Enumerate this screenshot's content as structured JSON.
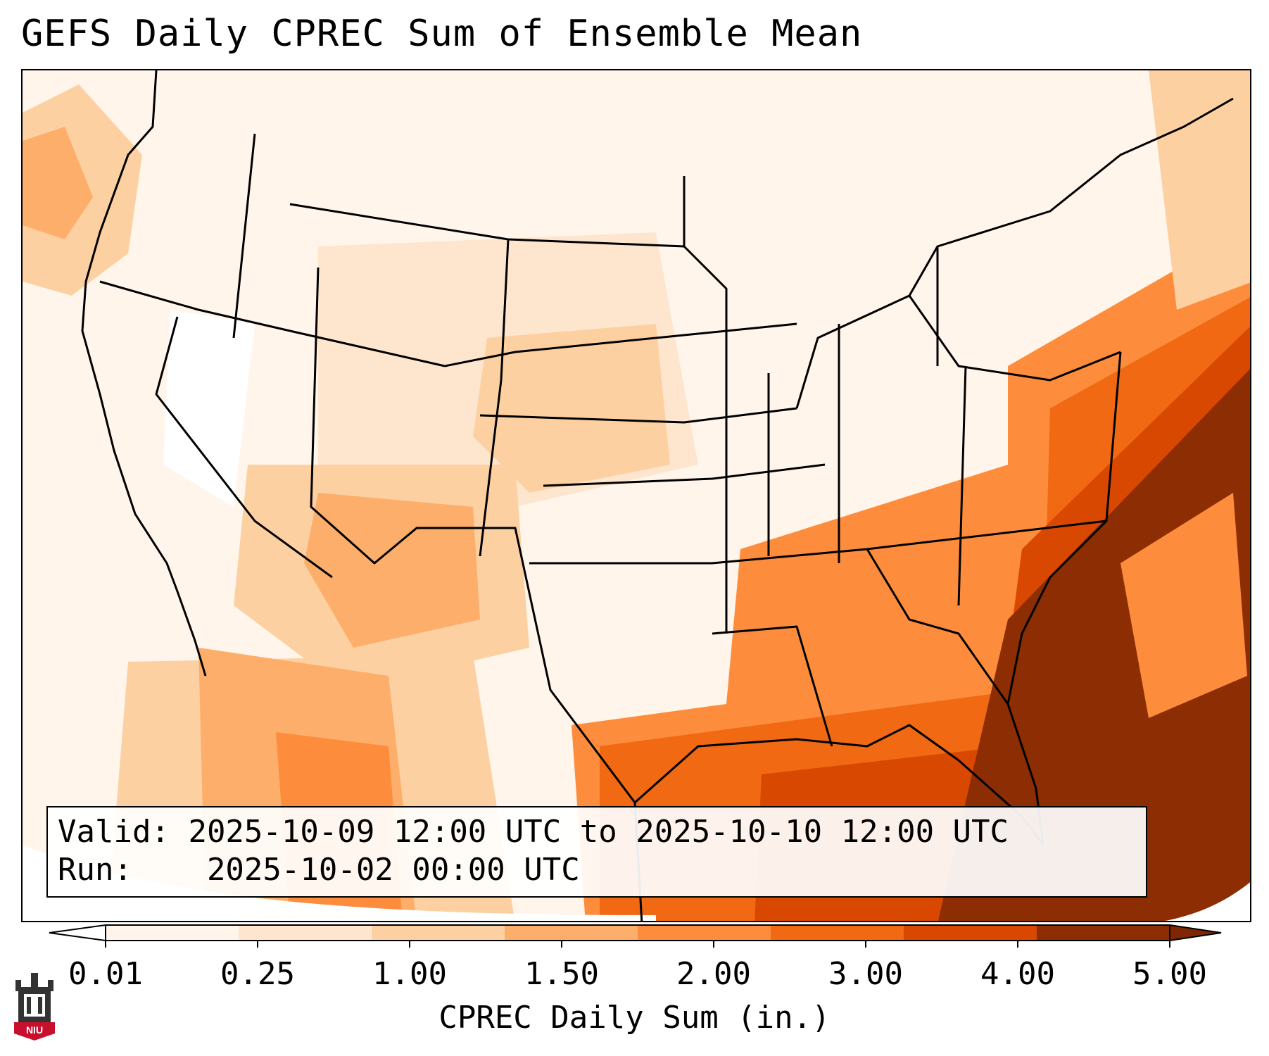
{
  "title": "GEFS Daily CPREC Sum of Ensemble Mean",
  "info": {
    "valid_label": "Valid:",
    "valid_value": "2025-10-09 12:00 UTC to 2025-10-10 12:00 UTC",
    "run_label": "Run:",
    "run_value": "2025-10-02 00:00 UTC"
  },
  "colorbar": {
    "label": "CPREC Daily Sum (in.)",
    "ticks": [
      "0.01",
      "0.25",
      "1.00",
      "1.50",
      "2.00",
      "3.00",
      "4.00",
      "5.00"
    ],
    "colors": [
      "#fff5eb",
      "#fee6ce",
      "#fdd0a2",
      "#fdae6b",
      "#fd8d3c",
      "#f16913",
      "#d94801",
      "#8c2d04"
    ],
    "under_color": "#ffffff",
    "over_color": "#7f2704"
  },
  "logo": {
    "text": "NIU",
    "color": "#c8102e"
  }
}
